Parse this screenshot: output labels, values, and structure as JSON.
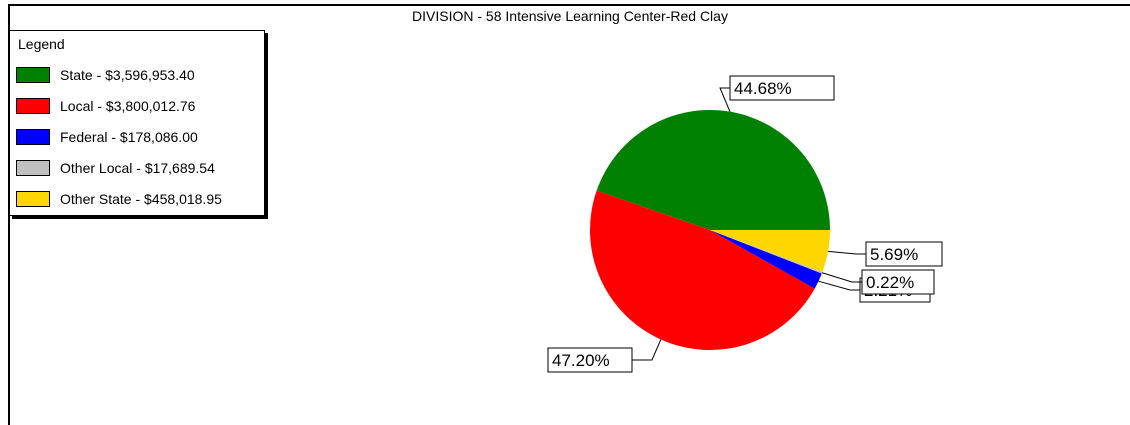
{
  "chart_data": {
    "type": "pie",
    "title": "DIVISION - 58  Intensive Learning Center-Red Clay",
    "legend_title": "Legend",
    "legend_position": "top-left",
    "slices": [
      {
        "name": "State",
        "amount": "$3,596,953.40",
        "legend_label": "State - $3,596,953.40",
        "percent_label": "44.68%",
        "value": 44.68,
        "color": "#008000"
      },
      {
        "name": "Local",
        "amount": "$3,800,012.76",
        "legend_label": "Local - $3,800,012.76",
        "percent_label": "47.20%",
        "value": 47.2,
        "color": "#ff0000"
      },
      {
        "name": "Federal",
        "amount": "$178,086.00",
        "legend_label": "Federal - $178,086.00",
        "percent_label": "2.21%",
        "value": 2.21,
        "color": "#0000ff"
      },
      {
        "name": "Other Local",
        "amount": "$17,689.54",
        "legend_label": "Other Local - $17,689.54",
        "percent_label": "0.22%",
        "value": 0.22,
        "color": "#c0c0c0"
      },
      {
        "name": "Other State",
        "amount": "$458,018.95",
        "legend_label": "Other State - $458,018.95",
        "percent_label": "5.69%",
        "value": 5.69,
        "color": "#ffd700"
      }
    ]
  }
}
